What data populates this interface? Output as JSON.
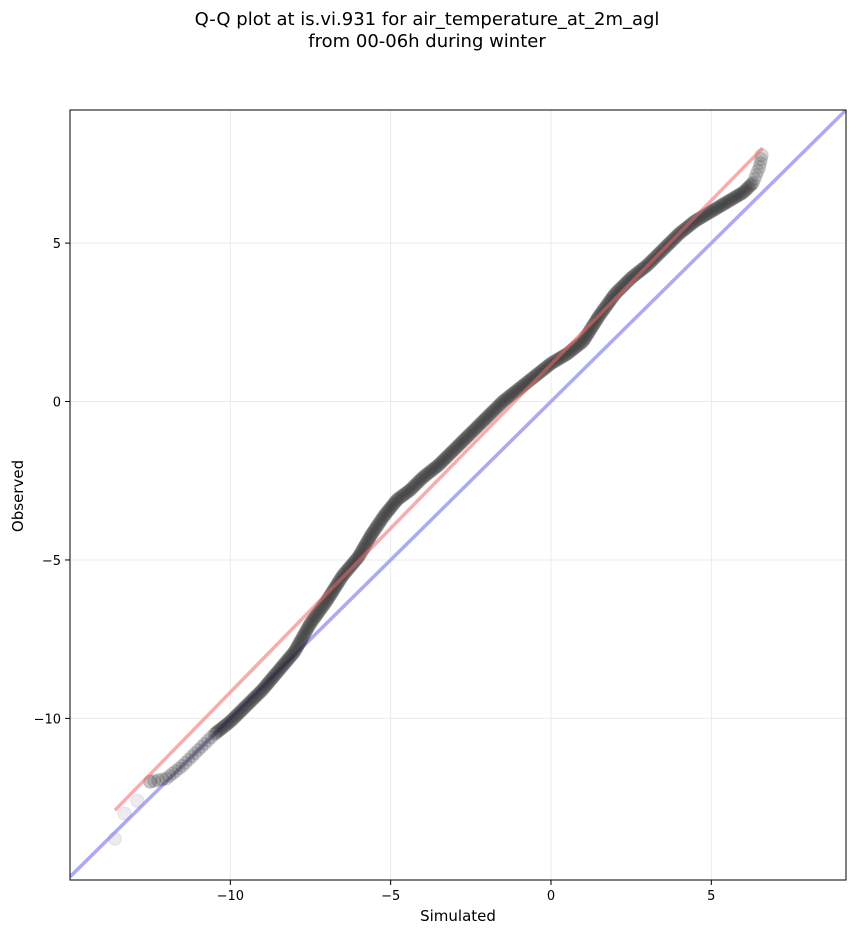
{
  "chart_data": {
    "type": "scatter",
    "title_line1": "Q-Q plot at is.vi.931 for air_temperature_at_2m_agl",
    "title_line2": "from 00-06h during winter",
    "xlabel": "Simulated",
    "ylabel": "Observed",
    "xlim": [
      -15.0,
      9.2
    ],
    "ylim": [
      -15.1,
      9.2
    ],
    "xticks": [
      -10,
      -5,
      0,
      5
    ],
    "yticks": [
      -10,
      -5,
      0,
      5
    ],
    "xtick_labels": [
      "−10",
      "−5",
      "0",
      "5"
    ],
    "ytick_labels": [
      "−10",
      "−5",
      "0",
      "5"
    ],
    "grid": true,
    "colors": {
      "points": "#1a1a1a",
      "identity_line": "#aaaaf5",
      "fit_line": "#f5a6a6",
      "grid": "#ebebeb"
    },
    "fit_line": {
      "x": [
        -13.6,
        6.6
      ],
      "y": [
        -12.9,
        8.0
      ]
    },
    "identity_line": {
      "x": [
        -15.0,
        9.2
      ],
      "y": [
        -15.0,
        9.2
      ]
    },
    "qq_curve": {
      "x": [
        -13.6,
        -13.3,
        -12.9,
        -12.5,
        -12.0,
        -11.5,
        -11.0,
        -10.5,
        -10.0,
        -9.5,
        -9.0,
        -8.5,
        -8.0,
        -7.5,
        -7.0,
        -6.5,
        -6.0,
        -5.6,
        -5.2,
        -4.8,
        -4.4,
        -4.0,
        -3.5,
        -3.0,
        -2.5,
        -2.0,
        -1.5,
        -1.0,
        -0.5,
        0.0,
        0.5,
        1.0,
        1.5,
        2.0,
        2.5,
        3.0,
        3.5,
        4.0,
        4.5,
        5.0,
        5.5,
        6.0,
        6.3,
        6.5,
        6.6
      ],
      "y": [
        -13.8,
        -13.0,
        -12.6,
        -12.0,
        -11.9,
        -11.5,
        -11.0,
        -10.5,
        -10.1,
        -9.6,
        -9.1,
        -8.5,
        -7.9,
        -7.0,
        -6.3,
        -5.5,
        -4.9,
        -4.2,
        -3.6,
        -3.1,
        -2.8,
        -2.4,
        -2.0,
        -1.5,
        -1.0,
        -0.5,
        0.0,
        0.4,
        0.8,
        1.2,
        1.5,
        1.9,
        2.7,
        3.4,
        3.9,
        4.3,
        4.8,
        5.3,
        5.7,
        6.0,
        6.3,
        6.6,
        6.9,
        7.4,
        7.9
      ]
    },
    "outlier_points": {
      "x": [
        -13.6,
        -13.3,
        -12.9,
        -12.5
      ],
      "y": [
        -13.8,
        -13.0,
        -12.6,
        -12.0
      ]
    }
  }
}
